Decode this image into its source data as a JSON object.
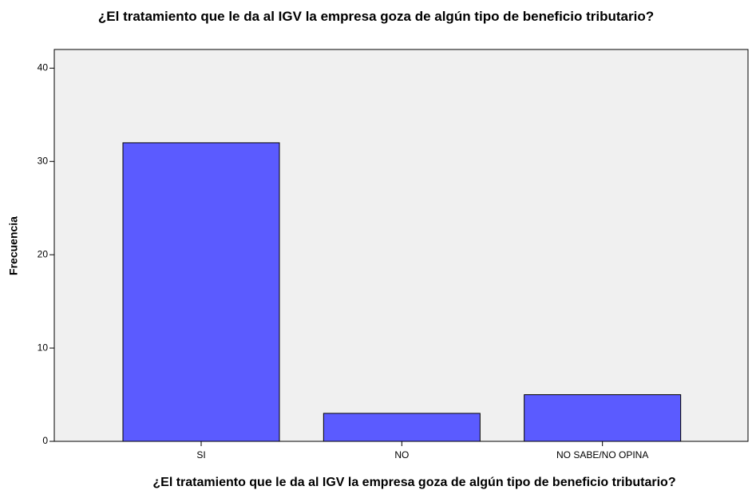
{
  "chart_data": {
    "type": "bar",
    "title": "¿El tratamiento que le da al IGV la empresa goza de algún tipo de beneficio tributario?",
    "x_label": "¿El tratamiento que le da al IGV la empresa goza de algún tipo de beneficio tributario?",
    "y_label": "Frecuencia",
    "categories": [
      "SI",
      "NO",
      "NO SABE/NO OPINA"
    ],
    "values": [
      32,
      3,
      5
    ],
    "color": "#5b5bff",
    "ylim": [
      0,
      42
    ],
    "yticks": [
      0,
      10,
      20,
      30,
      40
    ],
    "grid": false
  }
}
